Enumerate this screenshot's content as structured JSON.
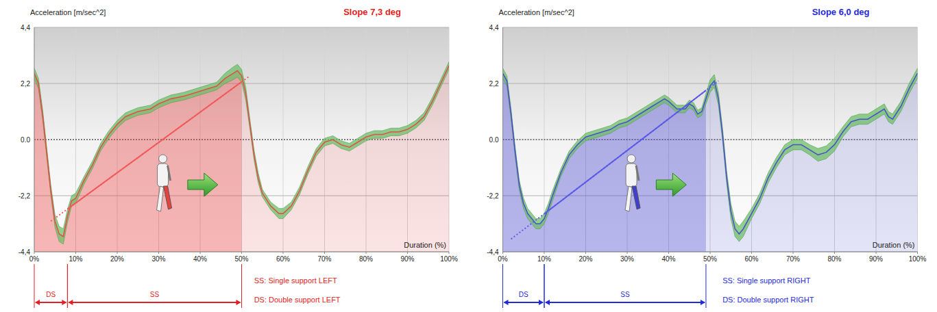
{
  "chart_data": [
    {
      "type": "line",
      "title": "Slope 7,3 deg",
      "y_label": "Acceleration [m/sec^2]",
      "x_label": "Duration (%)",
      "color": "#e31e24",
      "grid": true,
      "xlim": [
        0,
        100
      ],
      "xticks": [
        {
          "value": 0,
          "label": "0%"
        },
        {
          "value": 10,
          "label": "10%"
        },
        {
          "value": 20,
          "label": "20%"
        },
        {
          "value": 30,
          "label": "30%"
        },
        {
          "value": 40,
          "label": "40%"
        },
        {
          "value": 50,
          "label": "50%"
        },
        {
          "value": 60,
          "label": "60%"
        },
        {
          "value": 70,
          "label": "70%"
        },
        {
          "value": 80,
          "label": "80%"
        },
        {
          "value": 90,
          "label": "90%"
        },
        {
          "value": 100,
          "label": "100%"
        }
      ],
      "ylim": [
        -4.4,
        4.4
      ],
      "yticks": [
        {
          "value": -4.4,
          "label": "-4,4"
        },
        {
          "value": -2.2,
          "label": "-2,2"
        },
        {
          "value": 0,
          "label": "0.0"
        },
        {
          "value": 2.2,
          "label": "2,2"
        },
        {
          "value": 4.4,
          "label": "4,4"
        }
      ],
      "series": [
        {
          "type": "area",
          "color": "#e8413e",
          "x": [
            0,
            1,
            2,
            3,
            4,
            5,
            6,
            7,
            8,
            9,
            10,
            12,
            14,
            16,
            18,
            20,
            22,
            25,
            28,
            30,
            33,
            36,
            38,
            40,
            42,
            44,
            46,
            48,
            49,
            50,
            51,
            52,
            53,
            54,
            55,
            57,
            59,
            60,
            62,
            64,
            66,
            68,
            70,
            72,
            74,
            76,
            78,
            80,
            82,
            84,
            86,
            88,
            90,
            92,
            94,
            96,
            98,
            100
          ],
          "values": [
            2.6,
            2.2,
            1.0,
            -0.5,
            -2.0,
            -3.2,
            -3.7,
            -3.8,
            -3.0,
            -2.4,
            -2.3,
            -1.6,
            -1.0,
            -0.3,
            0.2,
            0.6,
            0.9,
            1.1,
            1.2,
            1.4,
            1.6,
            1.7,
            1.8,
            1.9,
            2.0,
            2.1,
            2.4,
            2.6,
            2.7,
            2.5,
            1.8,
            0.6,
            -0.6,
            -1.5,
            -2.1,
            -2.6,
            -2.9,
            -2.9,
            -2.6,
            -2.0,
            -1.2,
            -0.5,
            -0.1,
            0.0,
            -0.2,
            -0.3,
            -0.1,
            0.1,
            0.2,
            0.2,
            0.3,
            0.3,
            0.4,
            0.6,
            0.9,
            1.5,
            2.2,
            2.9
          ],
          "error": [
            0.2,
            0.2,
            0.2,
            0.2,
            0.2,
            0.25,
            0.3,
            0.3,
            0.25,
            0.2,
            0.2,
            0.15,
            0.15,
            0.15,
            0.15,
            0.15,
            0.15,
            0.15,
            0.15,
            0.15,
            0.15,
            0.15,
            0.15,
            0.15,
            0.15,
            0.15,
            0.2,
            0.25,
            0.25,
            0.25,
            0.25,
            0.2,
            0.2,
            0.2,
            0.15,
            0.15,
            0.2,
            0.2,
            0.15,
            0.15,
            0.15,
            0.15,
            0.15,
            0.15,
            0.15,
            0.15,
            0.15,
            0.15,
            0.15,
            0.15,
            0.15,
            0.15,
            0.15,
            0.15,
            0.15,
            0.15,
            0.15,
            0.15
          ]
        },
        {
          "type": "line",
          "line_style": "dashed",
          "color": "#f05a5a",
          "x": [
            4,
            52
          ],
          "values": [
            -3.2,
            2.5
          ]
        }
      ],
      "phases": [
        {
          "label": "DS",
          "start": 0,
          "end": 8
        },
        {
          "label": "SS",
          "start": 8,
          "end": 50
        }
      ],
      "notes": [
        "SS: Single support LEFT",
        "DS: Double support LEFT"
      ]
    },
    {
      "type": "line",
      "title": "Slope 6,0 deg",
      "y_label": "Acceleration [m/sec^2]",
      "x_label": "Duration (%)",
      "color": "#1f2ad8",
      "grid": true,
      "xlim": [
        0,
        100
      ],
      "xticks": [
        {
          "value": 0,
          "label": "0%"
        },
        {
          "value": 10,
          "label": "10%"
        },
        {
          "value": 20,
          "label": "20%"
        },
        {
          "value": 30,
          "label": "30%"
        },
        {
          "value": 40,
          "label": "40%"
        },
        {
          "value": 50,
          "label": "50%"
        },
        {
          "value": 60,
          "label": "60%"
        },
        {
          "value": 70,
          "label": "70%"
        },
        {
          "value": 80,
          "label": "80%"
        },
        {
          "value": 90,
          "label": "90%"
        },
        {
          "value": 100,
          "label": "100%"
        }
      ],
      "ylim": [
        -4.4,
        4.4
      ],
      "yticks": [
        {
          "value": -4.4,
          "label": "-4,4"
        },
        {
          "value": -2.2,
          "label": "-2,2"
        },
        {
          "value": 0,
          "label": "0.0"
        },
        {
          "value": 2.2,
          "label": "2,2"
        },
        {
          "value": 4.4,
          "label": "4,4"
        }
      ],
      "series": [
        {
          "type": "area",
          "color": "#4040d0",
          "x": [
            0,
            1,
            2,
            3,
            4,
            5,
            6,
            7,
            8,
            9,
            10,
            11,
            12,
            14,
            16,
            18,
            20,
            22,
            24,
            26,
            28,
            30,
            32,
            34,
            36,
            38,
            39,
            40,
            42,
            44,
            45,
            46,
            47,
            48,
            49,
            50,
            51,
            52,
            53,
            54,
            55,
            56,
            57,
            58,
            60,
            62,
            64,
            66,
            68,
            70,
            72,
            74,
            76,
            78,
            80,
            82,
            84,
            86,
            88,
            90,
            92,
            93,
            94,
            96,
            98,
            100
          ],
          "values": [
            2.6,
            2.3,
            1.0,
            -0.5,
            -1.8,
            -2.5,
            -2.9,
            -3.1,
            -3.3,
            -3.3,
            -3.1,
            -2.7,
            -2.2,
            -1.3,
            -0.6,
            -0.2,
            0.1,
            0.2,
            0.3,
            0.4,
            0.6,
            0.7,
            0.9,
            1.1,
            1.3,
            1.5,
            1.6,
            1.5,
            1.2,
            1.2,
            1.4,
            1.3,
            1.0,
            1.1,
            1.6,
            2.1,
            2.3,
            1.6,
            0.2,
            -1.5,
            -2.8,
            -3.5,
            -3.7,
            -3.5,
            -2.9,
            -2.3,
            -1.5,
            -0.9,
            -0.4,
            -0.2,
            -0.2,
            -0.4,
            -0.6,
            -0.5,
            -0.2,
            0.3,
            0.7,
            0.8,
            0.8,
            1.0,
            1.2,
            0.9,
            0.8,
            1.3,
            2.0,
            2.6
          ],
          "error": [
            0.2,
            0.2,
            0.2,
            0.2,
            0.2,
            0.2,
            0.2,
            0.2,
            0.2,
            0.2,
            0.2,
            0.2,
            0.2,
            0.15,
            0.15,
            0.15,
            0.15,
            0.15,
            0.15,
            0.15,
            0.15,
            0.15,
            0.15,
            0.15,
            0.15,
            0.15,
            0.15,
            0.15,
            0.15,
            0.15,
            0.15,
            0.15,
            0.15,
            0.15,
            0.2,
            0.25,
            0.25,
            0.25,
            0.25,
            0.25,
            0.3,
            0.3,
            0.3,
            0.3,
            0.2,
            0.2,
            0.2,
            0.2,
            0.2,
            0.2,
            0.2,
            0.2,
            0.25,
            0.25,
            0.25,
            0.2,
            0.2,
            0.2,
            0.2,
            0.2,
            0.2,
            0.2,
            0.2,
            0.2,
            0.2,
            0.2
          ]
        },
        {
          "type": "line",
          "line_style": "dashed",
          "color": "#5a5ae6",
          "x": [
            2,
            52
          ],
          "values": [
            -3.9,
            2.3
          ]
        }
      ],
      "phases": [
        {
          "label": "DS",
          "start": 0,
          "end": 10
        },
        {
          "label": "SS",
          "start": 10,
          "end": 49
        }
      ],
      "notes": [
        "SS: Single support RIGHT",
        "DS: Double support RIGHT"
      ]
    }
  ]
}
